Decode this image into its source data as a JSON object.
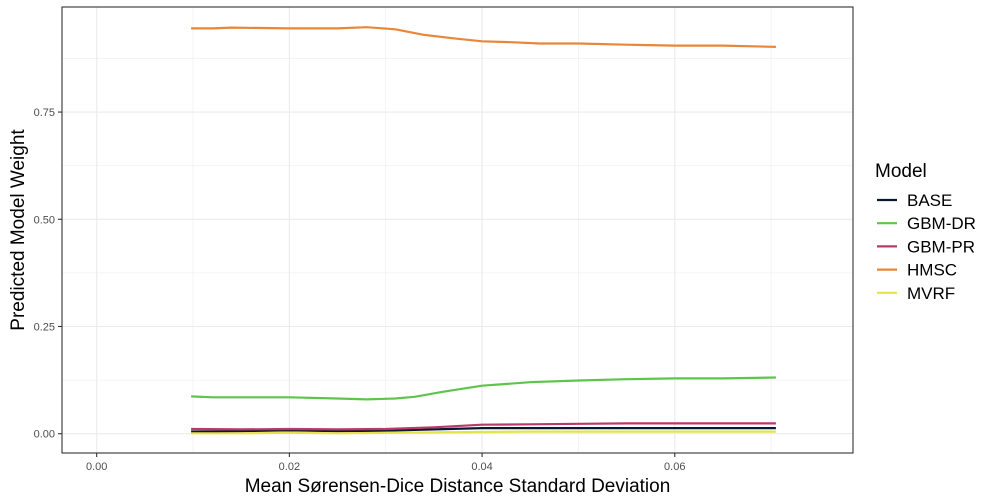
{
  "chart_data": {
    "type": "line",
    "title": "",
    "xlabel": "Mean Sørensen-Dice Distance Standard Deviation",
    "ylabel": "Predicted Model Weight",
    "xlim": [
      -0.0036,
      0.0785
    ],
    "ylim": [
      -0.045,
      0.995
    ],
    "x_ticks": [
      0.0,
      0.02,
      0.04,
      0.06
    ],
    "x_tick_labels": [
      "0.00",
      "0.02",
      "0.04",
      "0.06"
    ],
    "y_ticks": [
      0.0,
      0.25,
      0.5,
      0.75
    ],
    "y_tick_labels": [
      "0.00",
      "0.25",
      "0.50",
      "0.75"
    ],
    "grid": true,
    "legend_title": "Model",
    "legend_position": "right",
    "series": [
      {
        "name": "BASE",
        "color": "#0b1a2b",
        "x": [
          0.0098,
          0.015,
          0.02,
          0.025,
          0.03,
          0.035,
          0.04,
          0.045,
          0.05,
          0.055,
          0.06,
          0.065,
          0.0705
        ],
        "y": [
          0.005,
          0.006,
          0.008,
          0.006,
          0.007,
          0.01,
          0.013,
          0.013,
          0.013,
          0.013,
          0.013,
          0.013,
          0.013
        ]
      },
      {
        "name": "GBM-DR",
        "color": "#5fc44c",
        "x": [
          0.0098,
          0.012,
          0.015,
          0.02,
          0.025,
          0.028,
          0.031,
          0.033,
          0.036,
          0.04,
          0.045,
          0.05,
          0.055,
          0.06,
          0.065,
          0.0705
        ],
        "y": [
          0.087,
          0.085,
          0.085,
          0.085,
          0.082,
          0.08,
          0.082,
          0.086,
          0.098,
          0.112,
          0.12,
          0.124,
          0.127,
          0.129,
          0.129,
          0.131
        ]
      },
      {
        "name": "GBM-PR",
        "color": "#b83a6b",
        "x": [
          0.0098,
          0.015,
          0.02,
          0.025,
          0.03,
          0.035,
          0.04,
          0.045,
          0.05,
          0.055,
          0.06,
          0.065,
          0.0705
        ],
        "y": [
          0.011,
          0.01,
          0.011,
          0.01,
          0.011,
          0.015,
          0.021,
          0.022,
          0.023,
          0.024,
          0.024,
          0.024,
          0.024
        ]
      },
      {
        "name": "HMSC",
        "color": "#e8873a",
        "x": [
          0.0098,
          0.012,
          0.014,
          0.02,
          0.025,
          0.028,
          0.031,
          0.034,
          0.037,
          0.04,
          0.043,
          0.046,
          0.05,
          0.055,
          0.06,
          0.065,
          0.0705
        ],
        "y": [
          0.945,
          0.945,
          0.947,
          0.945,
          0.945,
          0.948,
          0.943,
          0.93,
          0.922,
          0.915,
          0.913,
          0.91,
          0.91,
          0.907,
          0.905,
          0.905,
          0.902
        ]
      },
      {
        "name": "MVRF",
        "color": "#e6e34a",
        "x": [
          0.0098,
          0.015,
          0.02,
          0.025,
          0.03,
          0.035,
          0.04,
          0.045,
          0.05,
          0.055,
          0.06,
          0.065,
          0.0705
        ],
        "y": [
          0.001,
          0.001,
          0.002,
          0.001,
          0.002,
          0.003,
          0.004,
          0.005,
          0.005,
          0.005,
          0.005,
          0.005,
          0.005
        ]
      }
    ]
  }
}
